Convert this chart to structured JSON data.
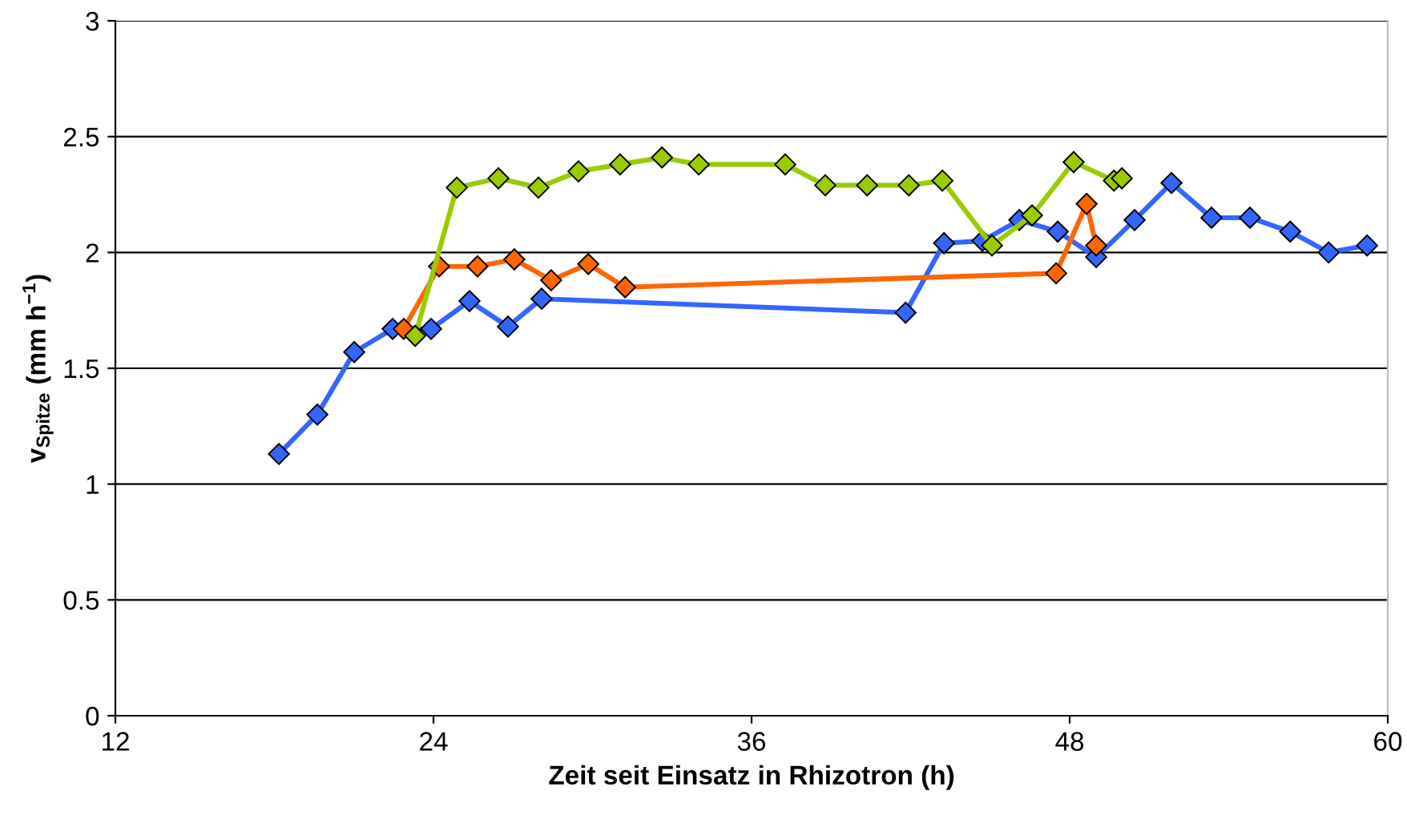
{
  "chart_data": {
    "type": "line",
    "xlabel": "Zeit seit Einsatz in Rhizotron (h)",
    "ylabel": "v$_{Spitze}$ (mm h$^{−1}$)",
    "xlim": [
      12,
      60
    ],
    "xticks": [
      12,
      24,
      36,
      48,
      60
    ],
    "ylim": [
      0,
      3
    ],
    "yticks": [
      0,
      0.5,
      1,
      1.5,
      2,
      2.5,
      3
    ],
    "grid": "y",
    "marker": "diamond",
    "line_style": "solid",
    "series": [
      {
        "color": "#3366ff",
        "x": [
          18.17,
          19.62,
          21.01,
          22.46,
          23.91,
          25.36,
          26.81,
          28.08,
          41.81,
          43.26,
          44.71,
          46.1,
          47.55,
          49.0,
          50.45,
          51.84,
          53.35,
          54.8,
          56.32,
          57.77,
          59.22
        ],
        "values": [
          1.13,
          1.3,
          1.57,
          1.67,
          1.67,
          1.79,
          1.68,
          1.8,
          1.74,
          2.04,
          2.05,
          2.14,
          2.09,
          1.98,
          2.14,
          2.3,
          2.15,
          2.15,
          2.09,
          2.0,
          2.03
        ]
      },
      {
        "color": "#ff6600",
        "x": [
          22.88,
          24.21,
          25.66,
          27.05,
          28.44,
          29.84,
          31.23,
          47.49,
          48.64,
          49.0
        ],
        "values": [
          1.67,
          1.94,
          1.94,
          1.97,
          1.88,
          1.95,
          1.85,
          1.91,
          2.21,
          2.03
        ]
      },
      {
        "color": "#99cc00",
        "x": [
          23.31,
          24.88,
          26.45,
          27.96,
          29.47,
          31.04,
          32.62,
          34.01,
          37.27,
          38.78,
          40.36,
          41.93,
          43.2,
          45.07,
          46.58,
          48.15,
          49.67,
          49.97
        ],
        "values": [
          1.64,
          2.28,
          2.32,
          2.28,
          2.35,
          2.38,
          2.41,
          2.38,
          2.38,
          2.29,
          2.29,
          2.29,
          2.31,
          2.03,
          2.16,
          2.39,
          2.31,
          2.32
        ]
      }
    ]
  }
}
